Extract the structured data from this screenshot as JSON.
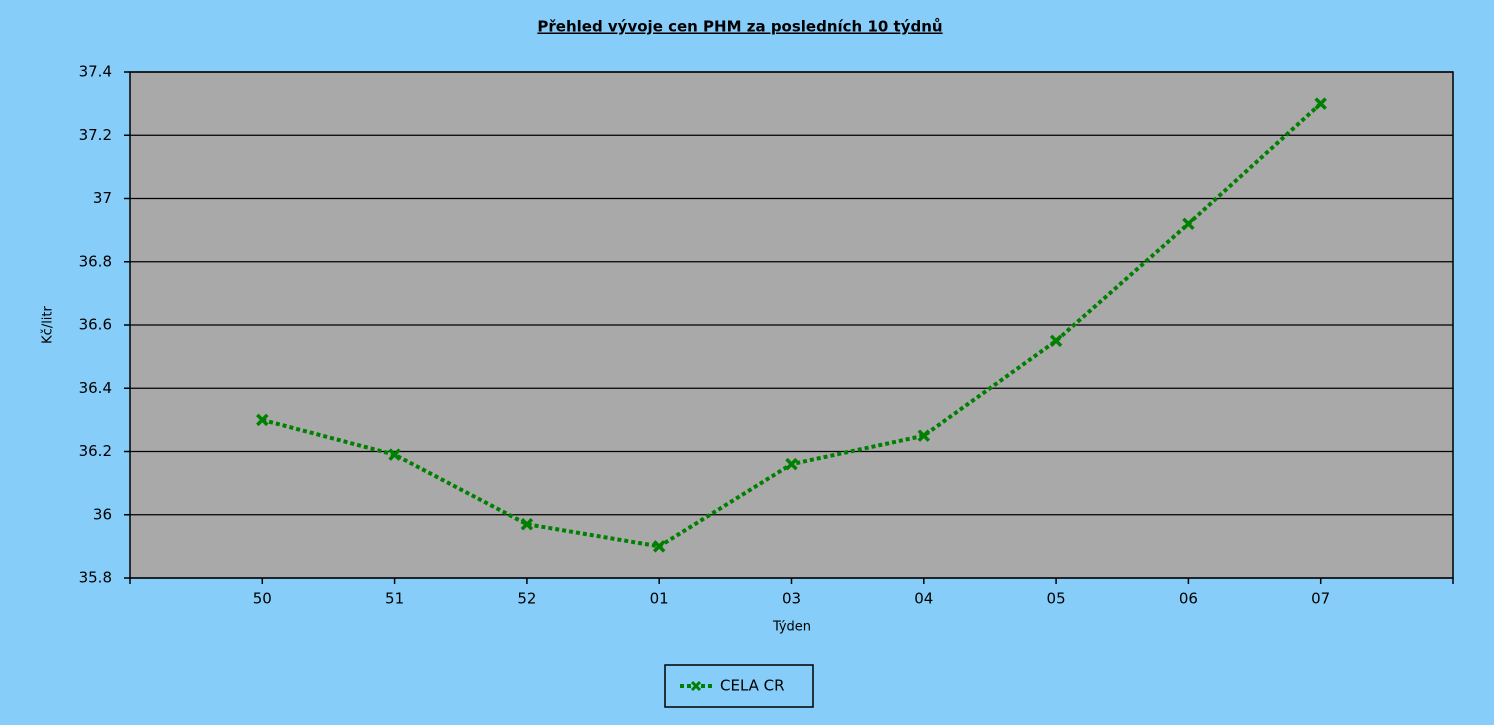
{
  "chart_data": {
    "type": "line",
    "title": "Přehled vývoje cen PHM za posledních 10 týdnů",
    "x_label": "Týden",
    "y_label": "Kč/litr",
    "categories": [
      null,
      "50",
      "51",
      "52",
      "01",
      "03",
      "04",
      "05",
      "06",
      "07",
      null
    ],
    "series": [
      {
        "name": "CELA CR",
        "color": "#008000",
        "values": [
          null,
          36.3,
          36.19,
          35.97,
          35.9,
          36.16,
          36.25,
          36.55,
          36.92,
          37.3,
          null
        ]
      }
    ],
    "ylim": [
      35.8,
      37.4
    ],
    "yticks": [
      35.8,
      36,
      36.2,
      36.4,
      36.6,
      36.8,
      37,
      37.2,
      37.4
    ],
    "grid": true,
    "legend": "bottom"
  }
}
